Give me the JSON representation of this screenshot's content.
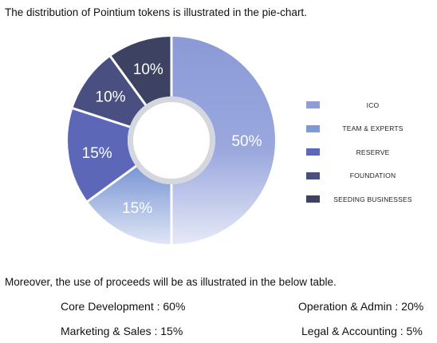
{
  "intro_text": "The distribution of Pointium tokens is illustrated in the pie-chart.",
  "chart_data": {
    "type": "pie",
    "variant": "donut",
    "slices": [
      {
        "label": "ICO",
        "value": 50,
        "display": "50%",
        "color": "#8f9ed8"
      },
      {
        "label": "TEAM & EXPERTS",
        "value": 15,
        "display": "15%",
        "color": "#7e9ad6"
      },
      {
        "label": "RESERVE",
        "value": 15,
        "display": "15%",
        "color": "#5c67b8"
      },
      {
        "label": "FOUNDATION",
        "value": 10,
        "display": "10%",
        "color": "#4a4f82"
      },
      {
        "label": "SEEDING BUSINESSES",
        "value": 10,
        "display": "10%",
        "color": "#3d4262"
      }
    ],
    "legend_position": "right"
  },
  "outro_text": "Moreover, the use of proceeds will be as illustrated in the below table.",
  "proceeds": [
    {
      "text": "Core Development : 60%"
    },
    {
      "text": "Operation & Admin : 20%"
    },
    {
      "text": "Marketing & Sales : 15%"
    },
    {
      "text": "Legal & Accounting : 5%"
    }
  ]
}
